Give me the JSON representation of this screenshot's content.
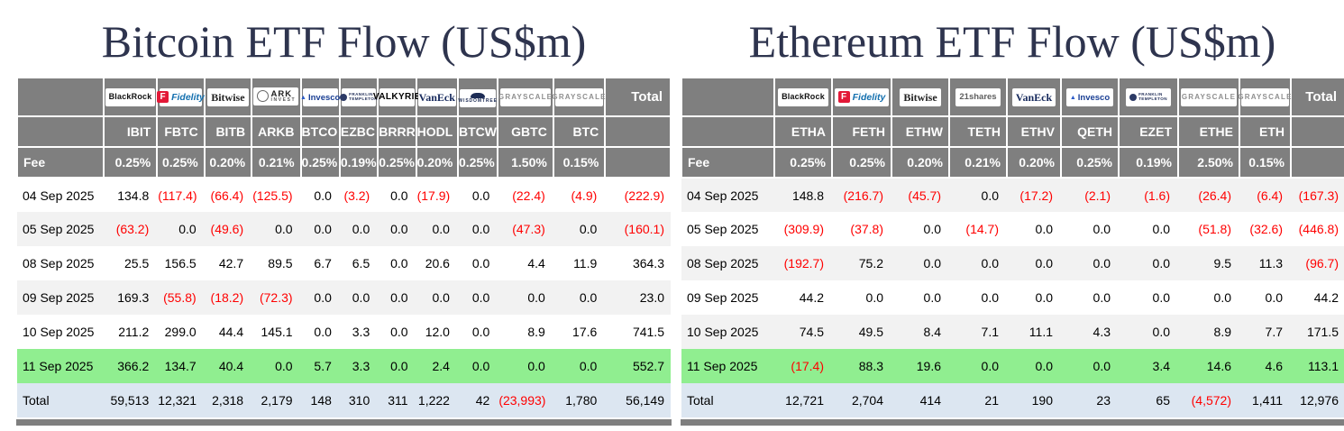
{
  "colors": {
    "title_text": "#2e344e",
    "header_background": "#7f7f7f",
    "negative_value": "#ff0000",
    "highlight_row": "#90ee90",
    "total_row": "#dce6f1",
    "alt_row": "#f2f2f2"
  },
  "chart_data": [
    {
      "type": "table",
      "title": "Bitcoin ETF Flow (US$m)",
      "total_header": "Total",
      "fee_label": "Fee",
      "alt_first_row_shaded": false,
      "providers": [
        {
          "name": "BlackRock"
        },
        {
          "name": "Fidelity"
        },
        {
          "name": "Bitwise"
        },
        {
          "name": "ARK Invest",
          "lines": [
            "ARK",
            "INVEST"
          ]
        },
        {
          "name": "Invesco"
        },
        {
          "name": "Franklin Templeton",
          "lines": [
            "FRANKLIN",
            "TEMPLETON"
          ]
        },
        {
          "name": "Valkyrie"
        },
        {
          "name": "VanEck"
        },
        {
          "name": "WisdomTree"
        },
        {
          "name": "Grayscale"
        },
        {
          "name": "Grayscale"
        }
      ],
      "tickers": [
        "IBIT",
        "FBTC",
        "BITB",
        "ARKB",
        "BTCO",
        "EZBC",
        "BRRR",
        "HODL",
        "BTCW",
        "GBTC",
        "BTC"
      ],
      "fees": [
        "0.25%",
        "0.25%",
        "0.20%",
        "0.21%",
        "0.25%",
        "0.19%",
        "0.25%",
        "0.20%",
        "0.25%",
        "1.50%",
        "0.15%"
      ],
      "rows": [
        {
          "date": "04 Sep 2025",
          "values": [
            "134.8",
            "(117.4)",
            "(66.4)",
            "(125.5)",
            "0.0",
            "(3.2)",
            "0.0",
            "(17.9)",
            "0.0",
            "(22.4)",
            "(4.9)"
          ],
          "total": "(222.9)",
          "highlight": false
        },
        {
          "date": "05 Sep 2025",
          "values": [
            "(63.2)",
            "0.0",
            "(49.6)",
            "0.0",
            "0.0",
            "0.0",
            "0.0",
            "0.0",
            "0.0",
            "(47.3)",
            "0.0"
          ],
          "total": "(160.1)",
          "highlight": false
        },
        {
          "date": "08 Sep 2025",
          "values": [
            "25.5",
            "156.5",
            "42.7",
            "89.5",
            "6.7",
            "6.5",
            "0.0",
            "20.6",
            "0.0",
            "4.4",
            "11.9"
          ],
          "total": "364.3",
          "highlight": false
        },
        {
          "date": "09 Sep 2025",
          "values": [
            "169.3",
            "(55.8)",
            "(18.2)",
            "(72.3)",
            "0.0",
            "0.0",
            "0.0",
            "0.0",
            "0.0",
            "0.0",
            "0.0"
          ],
          "total": "23.0",
          "highlight": false
        },
        {
          "date": "10 Sep 2025",
          "values": [
            "211.2",
            "299.0",
            "44.4",
            "145.1",
            "0.0",
            "3.3",
            "0.0",
            "12.0",
            "0.0",
            "8.9",
            "17.6"
          ],
          "total": "741.5",
          "highlight": false
        },
        {
          "date": "11 Sep 2025",
          "values": [
            "366.2",
            "134.7",
            "40.4",
            "0.0",
            "5.7",
            "3.3",
            "0.0",
            "2.4",
            "0.0",
            "0.0",
            "0.0"
          ],
          "total": "552.7",
          "highlight": true
        }
      ],
      "total_row": {
        "label": "Total",
        "values": [
          "59,513",
          "12,321",
          "2,318",
          "2,179",
          "148",
          "310",
          "311",
          "1,222",
          "42",
          "(23,993)",
          "1,780"
        ],
        "total": "56,149"
      }
    },
    {
      "type": "table",
      "title": "Ethereum ETF Flow (US$m)",
      "total_header": "Total",
      "fee_label": "Fee",
      "alt_first_row_shaded": true,
      "providers": [
        {
          "name": "BlackRock"
        },
        {
          "name": "Fidelity"
        },
        {
          "name": "Bitwise"
        },
        {
          "name": "21shares"
        },
        {
          "name": "VanEck"
        },
        {
          "name": "Invesco"
        },
        {
          "name": "Franklin Templeton",
          "lines": [
            "FRANKLIN",
            "TEMPLETON"
          ]
        },
        {
          "name": "Grayscale"
        },
        {
          "name": "Grayscale"
        }
      ],
      "tickers": [
        "ETHA",
        "FETH",
        "ETHW",
        "TETH",
        "ETHV",
        "QETH",
        "EZET",
        "ETHE",
        "ETH"
      ],
      "fees": [
        "0.25%",
        "0.25%",
        "0.20%",
        "0.21%",
        "0.20%",
        "0.25%",
        "0.19%",
        "2.50%",
        "0.15%"
      ],
      "rows": [
        {
          "date": "04 Sep 2025",
          "values": [
            "148.8",
            "(216.7)",
            "(45.7)",
            "0.0",
            "(17.2)",
            "(2.1)",
            "(1.6)",
            "(26.4)",
            "(6.4)"
          ],
          "total": "(167.3)",
          "highlight": false
        },
        {
          "date": "05 Sep 2025",
          "values": [
            "(309.9)",
            "(37.8)",
            "0.0",
            "(14.7)",
            "0.0",
            "0.0",
            "0.0",
            "(51.8)",
            "(32.6)"
          ],
          "total": "(446.8)",
          "highlight": false
        },
        {
          "date": "08 Sep 2025",
          "values": [
            "(192.7)",
            "75.2",
            "0.0",
            "0.0",
            "0.0",
            "0.0",
            "0.0",
            "9.5",
            "11.3"
          ],
          "total": "(96.7)",
          "highlight": false
        },
        {
          "date": "09 Sep 2025",
          "values": [
            "44.2",
            "0.0",
            "0.0",
            "0.0",
            "0.0",
            "0.0",
            "0.0",
            "0.0",
            "0.0"
          ],
          "total": "44.2",
          "highlight": false
        },
        {
          "date": "10 Sep 2025",
          "values": [
            "74.5",
            "49.5",
            "8.4",
            "7.1",
            "11.1",
            "4.3",
            "0.0",
            "8.9",
            "7.7"
          ],
          "total": "171.5",
          "highlight": false
        },
        {
          "date": "11 Sep 2025",
          "values": [
            "(17.4)",
            "88.3",
            "19.6",
            "0.0",
            "0.0",
            "0.0",
            "3.4",
            "14.6",
            "4.6"
          ],
          "total": "113.1",
          "highlight": true
        }
      ],
      "total_row": {
        "label": "Total",
        "values": [
          "12,721",
          "2,704",
          "414",
          "21",
          "190",
          "23",
          "65",
          "(4,572)",
          "1,411"
        ],
        "total": "12,976"
      }
    }
  ]
}
